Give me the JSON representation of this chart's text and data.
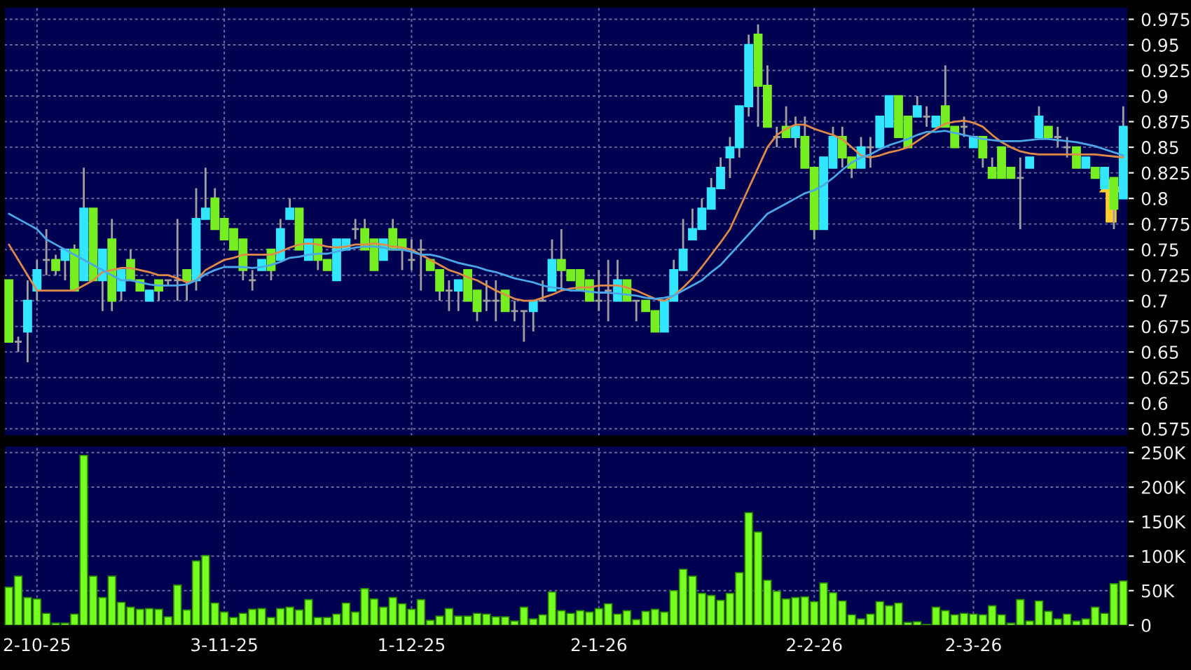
{
  "chart_data": [
    {
      "type": "candlestick",
      "categories": [
        null,
        null,
        null,
        null,
        null,
        null,
        null,
        null,
        null,
        null,
        null,
        null,
        null,
        null,
        null,
        null,
        null,
        null,
        null,
        null,
        null,
        null,
        null,
        null,
        null,
        null,
        null,
        null,
        null,
        null,
        null,
        null,
        null,
        null,
        null,
        null,
        null,
        null,
        null,
        null,
        null,
        null,
        null,
        null,
        null,
        null,
        null,
        null,
        null,
        null,
        null,
        null,
        null,
        null,
        null,
        null,
        null,
        null,
        null,
        null,
        null,
        null,
        null,
        null,
        null,
        null,
        null,
        null,
        null,
        null,
        null,
        null,
        null,
        null,
        null,
        null,
        null,
        null,
        null,
        null,
        null,
        null,
        null,
        null,
        null,
        null,
        null,
        null,
        null,
        null,
        null,
        null,
        null,
        null,
        null,
        null,
        null,
        null,
        null,
        null,
        null,
        null,
        null,
        null,
        null,
        null,
        null,
        null,
        null,
        null,
        null,
        null,
        null,
        null,
        null,
        null,
        null,
        null,
        null,
        null
      ],
      "ohlc": [
        [
          0.72,
          0.72,
          0.66,
          0.66
        ],
        [
          0.66,
          0.665,
          0.65,
          0.66
        ],
        [
          0.67,
          0.72,
          0.64,
          0.7
        ],
        [
          0.71,
          0.74,
          0.7,
          0.73
        ],
        [
          0.74,
          0.77,
          0.725,
          0.74
        ],
        [
          0.74,
          0.745,
          0.725,
          0.73
        ],
        [
          0.74,
          0.75,
          0.72,
          0.75
        ],
        [
          0.75,
          0.755,
          0.71,
          0.71
        ],
        [
          0.72,
          0.83,
          0.72,
          0.79
        ],
        [
          0.79,
          0.79,
          0.72,
          0.72
        ],
        [
          0.72,
          0.75,
          0.69,
          0.75
        ],
        [
          0.76,
          0.78,
          0.69,
          0.7
        ],
        [
          0.71,
          0.73,
          0.7,
          0.73
        ],
        [
          0.74,
          0.75,
          0.72,
          0.72
        ],
        [
          0.72,
          0.72,
          0.71,
          0.71
        ],
        [
          0.7,
          0.71,
          0.7,
          0.71
        ],
        [
          0.72,
          0.72,
          0.7,
          0.71
        ],
        [
          0.72,
          0.72,
          0.715,
          0.72
        ],
        [
          0.72,
          0.78,
          0.7,
          0.72
        ],
        [
          0.73,
          0.73,
          0.7,
          0.72
        ],
        [
          0.72,
          0.81,
          0.71,
          0.78
        ],
        [
          0.78,
          0.83,
          0.78,
          0.79
        ],
        [
          0.8,
          0.81,
          0.77,
          0.77
        ],
        [
          0.78,
          0.78,
          0.76,
          0.76
        ],
        [
          0.77,
          0.77,
          0.75,
          0.75
        ],
        [
          0.76,
          0.76,
          0.72,
          0.73
        ],
        [
          0.72,
          0.73,
          0.71,
          0.72
        ],
        [
          0.73,
          0.74,
          0.73,
          0.74
        ],
        [
          0.75,
          0.75,
          0.72,
          0.73
        ],
        [
          0.74,
          0.78,
          0.74,
          0.77
        ],
        [
          0.78,
          0.8,
          0.78,
          0.79
        ],
        [
          0.79,
          0.79,
          0.75,
          0.75
        ],
        [
          0.74,
          0.76,
          0.74,
          0.76
        ],
        [
          0.76,
          0.76,
          0.73,
          0.74
        ],
        [
          0.74,
          0.74,
          0.73,
          0.73
        ],
        [
          0.72,
          0.76,
          0.72,
          0.76
        ],
        [
          0.75,
          0.76,
          0.75,
          0.76
        ],
        [
          0.77,
          0.78,
          0.76,
          0.77
        ],
        [
          0.77,
          0.78,
          0.75,
          0.75
        ],
        [
          0.76,
          0.76,
          0.73,
          0.73
        ],
        [
          0.74,
          0.76,
          0.74,
          0.76
        ],
        [
          0.77,
          0.78,
          0.75,
          0.75
        ],
        [
          0.76,
          0.76,
          0.73,
          0.75
        ],
        [
          0.74,
          0.76,
          0.73,
          0.74
        ],
        [
          0.75,
          0.76,
          0.71,
          0.75
        ],
        [
          0.74,
          0.74,
          0.73,
          0.73
        ],
        [
          0.73,
          0.73,
          0.7,
          0.71
        ],
        [
          0.71,
          0.72,
          0.69,
          0.71
        ],
        [
          0.71,
          0.72,
          0.69,
          0.72
        ],
        [
          0.73,
          0.73,
          0.7,
          0.7
        ],
        [
          0.71,
          0.71,
          0.68,
          0.69
        ],
        [
          0.7,
          0.72,
          0.69,
          0.7
        ],
        [
          0.7,
          0.72,
          0.68,
          0.7
        ],
        [
          0.71,
          0.71,
          0.69,
          0.69
        ],
        [
          0.69,
          0.7,
          0.68,
          0.69
        ],
        [
          0.69,
          0.69,
          0.66,
          0.69
        ],
        [
          0.69,
          0.7,
          0.67,
          0.7
        ],
        [
          0.7,
          0.72,
          0.7,
          0.7
        ],
        [
          0.71,
          0.76,
          0.71,
          0.74
        ],
        [
          0.74,
          0.77,
          0.71,
          0.73
        ],
        [
          0.73,
          0.73,
          0.72,
          0.72
        ],
        [
          0.73,
          0.73,
          0.71,
          0.71
        ],
        [
          0.72,
          0.72,
          0.7,
          0.7
        ],
        [
          0.7,
          0.73,
          0.69,
          0.7
        ],
        [
          0.71,
          0.74,
          0.68,
          0.71
        ],
        [
          0.7,
          0.74,
          0.7,
          0.72
        ],
        [
          0.72,
          0.72,
          0.7,
          0.7
        ],
        [
          0.7,
          0.7,
          0.68,
          0.7
        ],
        [
          0.7,
          0.7,
          0.69,
          0.69
        ],
        [
          0.69,
          0.69,
          0.67,
          0.67
        ],
        [
          0.67,
          0.7,
          0.67,
          0.7
        ],
        [
          0.7,
          0.74,
          0.7,
          0.73
        ],
        [
          0.73,
          0.78,
          0.73,
          0.75
        ],
        [
          0.76,
          0.79,
          0.76,
          0.77
        ],
        [
          0.77,
          0.8,
          0.77,
          0.79
        ],
        [
          0.79,
          0.82,
          0.79,
          0.81
        ],
        [
          0.81,
          0.84,
          0.81,
          0.83
        ],
        [
          0.84,
          0.86,
          0.82,
          0.85
        ],
        [
          0.85,
          0.89,
          0.84,
          0.89
        ],
        [
          0.89,
          0.96,
          0.88,
          0.95
        ],
        [
          0.96,
          0.97,
          0.87,
          0.91
        ],
        [
          0.91,
          0.93,
          0.87,
          0.87
        ],
        [
          0.86,
          0.87,
          0.85,
          0.86
        ],
        [
          0.87,
          0.89,
          0.86,
          0.86
        ],
        [
          0.86,
          0.88,
          0.85,
          0.87
        ],
        [
          0.86,
          0.88,
          0.83,
          0.83
        ],
        [
          0.83,
          0.83,
          0.76,
          0.77
        ],
        [
          0.77,
          0.84,
          0.77,
          0.84
        ],
        [
          0.83,
          0.87,
          0.83,
          0.86
        ],
        [
          0.86,
          0.87,
          0.83,
          0.84
        ],
        [
          0.84,
          0.84,
          0.82,
          0.83
        ],
        [
          0.83,
          0.86,
          0.83,
          0.85
        ],
        [
          0.85,
          0.86,
          0.83,
          0.85
        ],
        [
          0.85,
          0.88,
          0.85,
          0.88
        ],
        [
          0.87,
          0.9,
          0.87,
          0.9
        ],
        [
          0.9,
          0.9,
          0.86,
          0.86
        ],
        [
          0.88,
          0.88,
          0.85,
          0.85
        ],
        [
          0.88,
          0.9,
          0.88,
          0.89
        ],
        [
          0.88,
          0.89,
          0.87,
          0.88
        ],
        [
          0.87,
          0.88,
          0.87,
          0.88
        ],
        [
          0.89,
          0.93,
          0.87,
          0.87
        ],
        [
          0.87,
          0.87,
          0.85,
          0.85
        ],
        [
          0.87,
          0.88,
          0.86,
          0.87
        ],
        [
          0.85,
          0.86,
          0.85,
          0.86
        ],
        [
          0.86,
          0.86,
          0.83,
          0.84
        ],
        [
          0.83,
          0.84,
          0.82,
          0.82
        ],
        [
          0.85,
          0.85,
          0.82,
          0.82
        ],
        [
          0.83,
          0.83,
          0.82,
          0.82
        ],
        [
          0.82,
          0.84,
          0.77,
          0.82
        ],
        [
          0.83,
          0.84,
          0.83,
          0.84
        ],
        [
          0.86,
          0.89,
          0.86,
          0.88
        ],
        [
          0.87,
          0.87,
          0.86,
          0.86
        ],
        [
          0.86,
          0.87,
          0.85,
          0.86
        ],
        [
          0.85,
          0.86,
          0.84,
          0.85
        ],
        [
          0.85,
          0.85,
          0.83,
          0.83
        ],
        [
          0.83,
          0.84,
          0.83,
          0.84
        ],
        [
          0.83,
          0.83,
          0.82,
          0.82
        ],
        [
          0.81,
          0.83,
          0.81,
          0.83
        ],
        [
          0.82,
          0.82,
          0.77,
          0.79
        ],
        [
          0.8,
          0.89,
          0.8,
          0.87
        ]
      ],
      "colors": [
        "#77ee22",
        "#a0a0a0",
        "#33e6ff",
        "#33e6ff",
        "#a0a0a0",
        "#77ee22",
        "#33e6ff",
        "#77ee22",
        "#33e6ff",
        "#77ee22",
        "#33e6ff",
        "#77ee22",
        "#33e6ff",
        "#77ee22",
        "#77ee22",
        "#33e6ff",
        "#77ee22",
        "#a0a0a0",
        "#a0a0a0",
        "#77ee22",
        "#33e6ff",
        "#33e6ff",
        "#77ee22",
        "#77ee22",
        "#77ee22",
        "#77ee22",
        "#a0a0a0",
        "#33e6ff",
        "#77ee22",
        "#33e6ff",
        "#33e6ff",
        "#77ee22",
        "#33e6ff",
        "#77ee22",
        "#77ee22",
        "#33e6ff",
        "#33e6ff",
        "#a0a0a0",
        "#77ee22",
        "#77ee22",
        "#33e6ff",
        "#77ee22",
        "#77ee22",
        "#a0a0a0",
        "#a0a0a0",
        "#77ee22",
        "#77ee22",
        "#a0a0a0",
        "#33e6ff",
        "#77ee22",
        "#77ee22",
        "#a0a0a0",
        "#a0a0a0",
        "#77ee22",
        "#a0a0a0",
        "#a0a0a0",
        "#33e6ff",
        "#a0a0a0",
        "#33e6ff",
        "#77ee22",
        "#77ee22",
        "#77ee22",
        "#77ee22",
        "#a0a0a0",
        "#a0a0a0",
        "#33e6ff",
        "#77ee22",
        "#a0a0a0",
        "#77ee22",
        "#77ee22",
        "#33e6ff",
        "#33e6ff",
        "#33e6ff",
        "#33e6ff",
        "#33e6ff",
        "#33e6ff",
        "#33e6ff",
        "#33e6ff",
        "#33e6ff",
        "#33e6ff",
        "#77ee22",
        "#77ee22",
        "#a0a0a0",
        "#77ee22",
        "#33e6ff",
        "#77ee22",
        "#77ee22",
        "#33e6ff",
        "#33e6ff",
        "#77ee22",
        "#77ee22",
        "#33e6ff",
        "#a0a0a0",
        "#33e6ff",
        "#33e6ff",
        "#77ee22",
        "#77ee22",
        "#33e6ff",
        "#a0a0a0",
        "#33e6ff",
        "#77ee22",
        "#77ee22",
        "#a0a0a0",
        "#33e6ff",
        "#77ee22",
        "#77ee22",
        "#77ee22",
        "#77ee22",
        "#a0a0a0",
        "#33e6ff",
        "#33e6ff",
        "#77ee22",
        "#a0a0a0",
        "#a0a0a0",
        "#77ee22",
        "#33e6ff",
        "#77ee22",
        "#33e6ff",
        "#77ee22",
        "#33e6ff"
      ],
      "series": [
        {
          "type": "line",
          "color": "#e08a4a",
          "values": [
            0.755,
            0.74,
            0.725,
            0.71,
            0.71,
            0.71,
            0.71,
            0.71,
            0.715,
            0.72,
            0.728,
            0.73,
            0.732,
            0.732,
            0.73,
            0.728,
            0.725,
            0.725,
            0.722,
            0.718,
            0.72,
            0.73,
            0.735,
            0.74,
            0.742,
            0.745,
            0.745,
            0.745,
            0.745,
            0.748,
            0.752,
            0.755,
            0.756,
            0.755,
            0.753,
            0.752,
            0.753,
            0.755,
            0.755,
            0.756,
            0.755,
            0.753,
            0.752,
            0.75,
            0.745,
            0.74,
            0.735,
            0.73,
            0.727,
            0.723,
            0.72,
            0.715,
            0.71,
            0.706,
            0.702,
            0.7,
            0.7,
            0.703,
            0.706,
            0.71,
            0.712,
            0.713,
            0.713,
            0.715,
            0.715,
            0.715,
            0.713,
            0.71,
            0.706,
            0.702,
            0.7,
            0.705,
            0.713,
            0.722,
            0.733,
            0.745,
            0.757,
            0.77,
            0.79,
            0.81,
            0.83,
            0.85,
            0.862,
            0.868,
            0.872,
            0.872,
            0.868,
            0.865,
            0.862,
            0.858,
            0.85,
            0.842,
            0.84,
            0.842,
            0.845,
            0.847,
            0.85,
            0.856,
            0.862,
            0.868,
            0.873,
            0.875,
            0.876,
            0.874,
            0.87,
            0.862,
            0.855,
            0.85,
            0.846,
            0.844,
            0.843,
            0.843,
            0.843,
            0.843,
            0.843,
            0.843,
            0.843,
            0.842,
            0.841,
            0.84
          ]
        },
        {
          "type": "line",
          "color": "#4aa8e8",
          "values": [
            0.785,
            0.78,
            0.775,
            0.77,
            0.76,
            0.755,
            0.75,
            0.745,
            0.74,
            0.735,
            0.73,
            0.725,
            0.72,
            0.72,
            0.718,
            0.716,
            0.715,
            0.715,
            0.715,
            0.716,
            0.72,
            0.726,
            0.73,
            0.733,
            0.733,
            0.733,
            0.732,
            0.733,
            0.735,
            0.738,
            0.742,
            0.743,
            0.745,
            0.746,
            0.746,
            0.748,
            0.75,
            0.752,
            0.753,
            0.753,
            0.752,
            0.75,
            0.75,
            0.748,
            0.745,
            0.745,
            0.743,
            0.74,
            0.737,
            0.735,
            0.733,
            0.73,
            0.728,
            0.725,
            0.722,
            0.72,
            0.718,
            0.715,
            0.713,
            0.712,
            0.71,
            0.71,
            0.709,
            0.708,
            0.708,
            0.707,
            0.706,
            0.705,
            0.703,
            0.702,
            0.703,
            0.705,
            0.71,
            0.715,
            0.72,
            0.728,
            0.735,
            0.745,
            0.755,
            0.765,
            0.775,
            0.785,
            0.79,
            0.795,
            0.8,
            0.805,
            0.808,
            0.813,
            0.82,
            0.828,
            0.835,
            0.84,
            0.843,
            0.848,
            0.852,
            0.855,
            0.858,
            0.862,
            0.865,
            0.865,
            0.866,
            0.864,
            0.862,
            0.86,
            0.858,
            0.857,
            0.856,
            0.856,
            0.856,
            0.857,
            0.858,
            0.858,
            0.857,
            0.856,
            0.855,
            0.853,
            0.851,
            0.848,
            0.845,
            0.842
          ]
        }
      ],
      "ylim": [
        0.568,
        0.987
      ],
      "yticks": [
        0.575,
        0.6,
        0.625,
        0.65,
        0.675,
        0.7,
        0.725,
        0.75,
        0.775,
        0.8,
        0.825,
        0.85,
        0.875,
        0.9,
        0.925,
        0.95,
        0.975
      ],
      "grid": true,
      "tick_labels": "y"
    },
    {
      "type": "bar",
      "categories": [
        null,
        null,
        null,
        "2-10-25",
        null,
        null,
        null,
        null,
        null,
        null,
        null,
        null,
        null,
        null,
        null,
        null,
        null,
        null,
        null,
        null,
        null,
        null,
        null,
        "3-11-25",
        null,
        null,
        null,
        null,
        null,
        null,
        null,
        null,
        null,
        null,
        null,
        null,
        null,
        null,
        null,
        null,
        null,
        null,
        null,
        "1-12-25",
        null,
        null,
        null,
        null,
        null,
        null,
        null,
        null,
        null,
        null,
        null,
        null,
        null,
        null,
        null,
        null,
        null,
        null,
        null,
        "2-1-26",
        null,
        null,
        null,
        null,
        null,
        null,
        null,
        null,
        null,
        null,
        null,
        null,
        null,
        null,
        null,
        null,
        null,
        null,
        null,
        null,
        null,
        null,
        "2-2-26",
        null,
        null,
        null,
        null,
        null,
        null,
        null,
        null,
        null,
        null,
        null,
        null,
        null,
        null,
        null,
        null,
        "2-3-26",
        null,
        null,
        null,
        null,
        null,
        null,
        null,
        null,
        null,
        null,
        null,
        null,
        null,
        null,
        null,
        null
      ],
      "values": [
        55000,
        71000,
        40000,
        38000,
        17000,
        3000,
        3000,
        16000,
        246000,
        71000,
        40000,
        71000,
        33000,
        26000,
        23000,
        24000,
        23000,
        12000,
        58000,
        22000,
        93000,
        101000,
        32000,
        19000,
        11000,
        17000,
        23000,
        24000,
        11000,
        24000,
        26000,
        22000,
        37000,
        11000,
        11000,
        16000,
        32000,
        19000,
        53000,
        38000,
        26000,
        40000,
        31000,
        23000,
        37000,
        7000,
        13000,
        24000,
        13000,
        13000,
        17000,
        16000,
        12000,
        12000,
        6000,
        26000,
        9000,
        15000,
        48000,
        21000,
        17000,
        21000,
        19000,
        24000,
        31000,
        16000,
        21000,
        8000,
        20000,
        23000,
        19000,
        50000,
        81000,
        71000,
        46000,
        43000,
        36000,
        46000,
        76000,
        163000,
        135000,
        65000,
        49000,
        38000,
        40000,
        41000,
        34000,
        61000,
        47000,
        35000,
        15000,
        9000,
        16000,
        34000,
        28000,
        32000,
        4000,
        5000,
        1000,
        26000,
        21000,
        15000,
        17000,
        16000,
        15000,
        28000,
        15000,
        3000,
        37000,
        6000,
        35000,
        20000,
        9000,
        16000,
        6000,
        9000,
        26000,
        17000,
        60000,
        64000
      ],
      "color": "#77ff22",
      "ylim": [
        0,
        260000
      ],
      "yticks": [
        0,
        {
          "value": 50000,
          "label": "50K"
        },
        {
          "value": 100000,
          "label": "100K"
        },
        {
          "value": 150000,
          "label": "150K"
        },
        {
          "value": 200000,
          "label": "200K"
        },
        {
          "value": 250000,
          "label": "250K"
        }
      ],
      "grid": true
    }
  ]
}
